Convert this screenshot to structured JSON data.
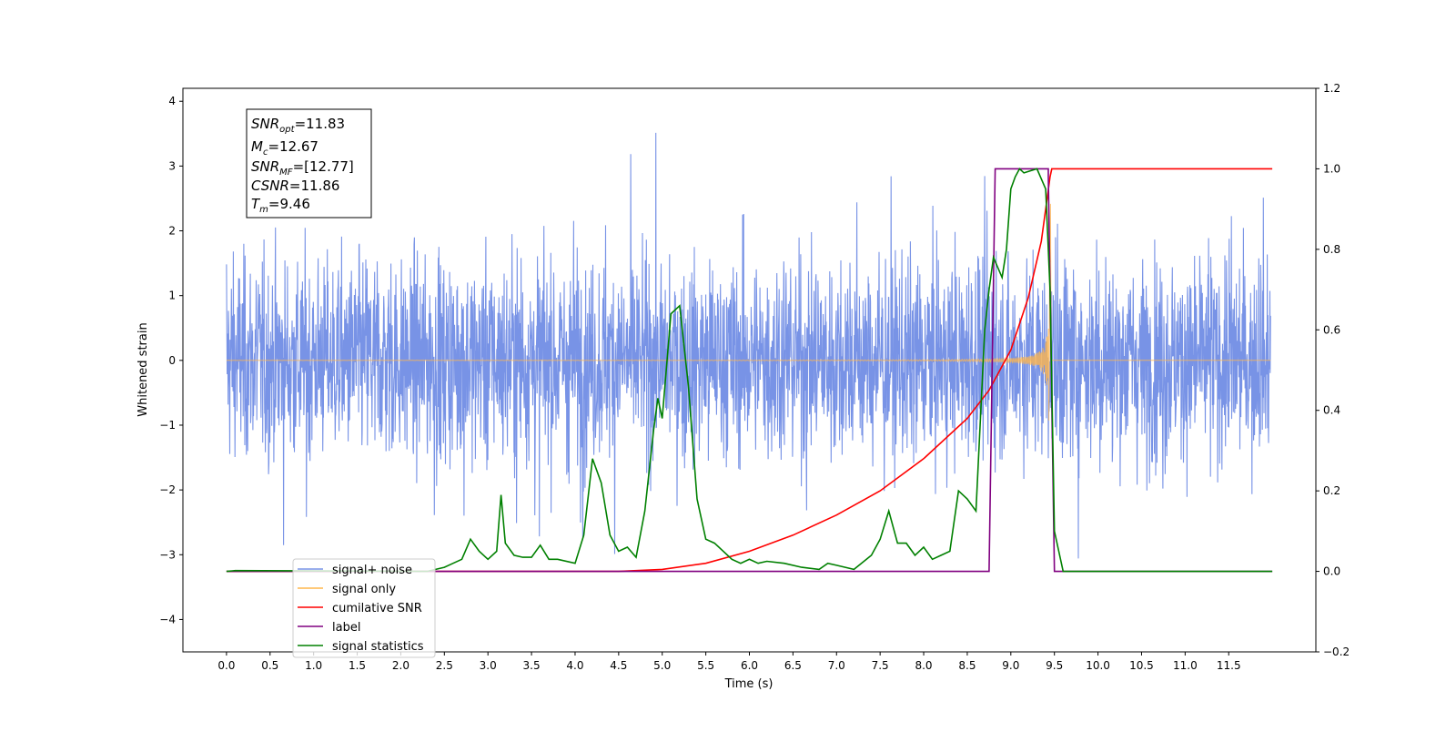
{
  "chart_data": {
    "type": "line",
    "xlabel": "Time (s)",
    "ylabel": "Whitened strain",
    "xlim": [
      -0.5,
      12.5
    ],
    "ylim": [
      -4.5,
      4.2
    ],
    "y2lim": [
      -0.2,
      1.2
    ],
    "x_ticks": [
      "0.0",
      "0.5",
      "1.0",
      "1.5",
      "2.0",
      "2.5",
      "3.0",
      "3.5",
      "4.0",
      "4.5",
      "5.0",
      "5.5",
      "6.0",
      "6.5",
      "7.0",
      "7.5",
      "8.0",
      "8.5",
      "9.0",
      "9.5",
      "10.0",
      "10.5",
      "11.0",
      "11.5"
    ],
    "y_ticks": [
      "4",
      "3",
      "2",
      "1",
      "0",
      "−1",
      "−2",
      "−3",
      "−4"
    ],
    "y2_ticks": [
      "1.2",
      "1.0",
      "0.8",
      "0.6",
      "0.4",
      "0.2",
      "0.0",
      "−0.2"
    ],
    "legend_position": "lower-left",
    "annotations": [
      {
        "sym": "SNR",
        "sub": "opt",
        "text": "=11.83"
      },
      {
        "sym": "M",
        "sub": "c",
        "text": "=12.67"
      },
      {
        "sym": "SNR",
        "sub": "MF",
        "text": "=[12.77]"
      },
      {
        "sym": "CSNR",
        "sub": "",
        "text": "=11.86"
      },
      {
        "sym": "T",
        "sub": "m",
        "text": "=9.46"
      }
    ],
    "series": [
      {
        "name": "signal+ noise",
        "color": "#7893e6",
        "axis": "left",
        "description": "noisy whitened strain, amplitude about ±2–3.8 from 0 to 12 s"
      },
      {
        "name": "signal only",
        "color": "#ffb74d",
        "axis": "left",
        "description": "chirp waveform growing until about 9.46 s"
      },
      {
        "name": "cumilative SNR",
        "color": "#ff0000",
        "axis": "right",
        "x": [
          0,
          4.5,
          5.0,
          5.5,
          6.0,
          6.5,
          7.0,
          7.5,
          8.0,
          8.5,
          8.75,
          9.0,
          9.2,
          9.35,
          9.45,
          9.47,
          12.0
        ],
        "y": [
          0,
          0,
          0.005,
          0.02,
          0.05,
          0.09,
          0.14,
          0.2,
          0.28,
          0.38,
          0.45,
          0.55,
          0.68,
          0.82,
          0.98,
          1.0,
          1.0
        ]
      },
      {
        "name": "label",
        "color": "#800080",
        "axis": "right",
        "x": [
          0,
          8.75,
          8.82,
          9.43,
          9.43,
          9.5,
          12.0
        ],
        "y": [
          0,
          0,
          1.0,
          1.0,
          0.98,
          0,
          0
        ]
      },
      {
        "name": "signal statistics",
        "color": "#008000",
        "axis": "right",
        "x": [
          0,
          0.1,
          2.3,
          2.5,
          2.6,
          2.7,
          2.8,
          2.9,
          3.0,
          3.1,
          3.15,
          3.2,
          3.3,
          3.4,
          3.5,
          3.6,
          3.7,
          3.8,
          4.0,
          4.1,
          4.2,
          4.3,
          4.4,
          4.5,
          4.6,
          4.7,
          4.8,
          4.9,
          4.95,
          5.0,
          5.1,
          5.2,
          5.3,
          5.4,
          5.5,
          5.6,
          5.8,
          5.9,
          6.0,
          6.1,
          6.2,
          6.4,
          6.6,
          6.8,
          6.9,
          7.0,
          7.2,
          7.4,
          7.5,
          7.6,
          7.7,
          7.8,
          7.9,
          8.0,
          8.1,
          8.2,
          8.3,
          8.4,
          8.5,
          8.6,
          8.7,
          8.75,
          8.8,
          8.9,
          8.95,
          9.0,
          9.05,
          9.1,
          9.15,
          9.3,
          9.4,
          9.45,
          9.5,
          9.55,
          9.6,
          12.0
        ],
        "y": [
          0,
          0.002,
          0,
          0.01,
          0.02,
          0.03,
          0.08,
          0.05,
          0.03,
          0.05,
          0.19,
          0.07,
          0.04,
          0.035,
          0.035,
          0.065,
          0.03,
          0.03,
          0.02,
          0.09,
          0.28,
          0.22,
          0.09,
          0.05,
          0.06,
          0.035,
          0.15,
          0.35,
          0.43,
          0.38,
          0.64,
          0.66,
          0.46,
          0.18,
          0.08,
          0.07,
          0.03,
          0.02,
          0.03,
          0.02,
          0.025,
          0.02,
          0.01,
          0.005,
          0.02,
          0.015,
          0.005,
          0.04,
          0.08,
          0.15,
          0.07,
          0.07,
          0.04,
          0.06,
          0.03,
          0.04,
          0.05,
          0.2,
          0.18,
          0.15,
          0.6,
          0.7,
          0.78,
          0.73,
          0.8,
          0.95,
          0.98,
          1.0,
          0.99,
          1.0,
          0.95,
          0.7,
          0.1,
          0.05,
          0,
          0
        ]
      }
    ]
  }
}
